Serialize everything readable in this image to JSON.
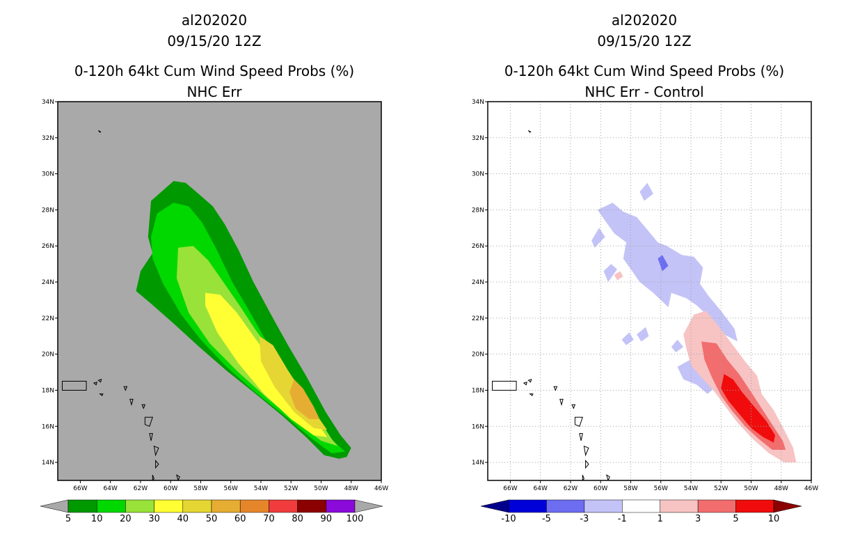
{
  "chart_data": [
    {
      "type": "filled-contour-map",
      "title_lines": [
        "al202020",
        "09/15/20 12Z",
        "0-120h 64kt Cum Wind Speed Probs (%)",
        "NHC Err"
      ],
      "lon_ticks": [
        "66W",
        "64W",
        "62W",
        "60W",
        "58W",
        "56W",
        "54W",
        "52W",
        "50W",
        "48W",
        "46W"
      ],
      "lat_ticks": [
        "14N",
        "16N",
        "18N",
        "20N",
        "22N",
        "24N",
        "26N",
        "28N",
        "30N",
        "32N",
        "34N"
      ],
      "lon_range": [
        -67.5,
        -46
      ],
      "lat_range": [
        13,
        34
      ],
      "grid": false,
      "background_color": "#a9a9a9",
      "colorbar": {
        "labels": [
          "5",
          "10",
          "20",
          "30",
          "40",
          "50",
          "60",
          "70",
          "80",
          "90",
          "100"
        ],
        "colors": [
          "#009900",
          "#00d800",
          "#99e23a",
          "#ffff33",
          "#e6d633",
          "#e6ad33",
          "#e6862a",
          "#f03c3c",
          "#8b0000",
          "#8a0bd9"
        ],
        "end_color": "#a9a9a9"
      },
      "contours": [
        {
          "level": 5,
          "color": "#009900",
          "polygon": [
            [
              -61.3,
              28.5
            ],
            [
              -59.8,
              29.6
            ],
            [
              -59.0,
              29.5
            ],
            [
              -58.3,
              29.0
            ],
            [
              -57.2,
              28.2
            ],
            [
              -56.4,
              27.2
            ],
            [
              -55.5,
              25.8
            ],
            [
              -54.5,
              24.0
            ],
            [
              -53.2,
              22.0
            ],
            [
              -52.2,
              20.5
            ],
            [
              -51.0,
              18.8
            ],
            [
              -49.7,
              16.8
            ],
            [
              -48.7,
              15.5
            ],
            [
              -48.0,
              14.8
            ],
            [
              -48.3,
              14.3
            ],
            [
              -48.8,
              14.2
            ],
            [
              -49.8,
              14.4
            ],
            [
              -51.0,
              15.4
            ],
            [
              -52.6,
              16.6
            ],
            [
              -54.5,
              17.9
            ],
            [
              -56.3,
              19.1
            ],
            [
              -58.1,
              20.4
            ],
            [
              -59.8,
              21.7
            ],
            [
              -61.3,
              22.8
            ],
            [
              -62.3,
              23.5
            ],
            [
              -62.0,
              24.6
            ],
            [
              -61.2,
              25.6
            ],
            [
              -61.5,
              26.5
            ]
          ]
        },
        {
          "level": 10,
          "color": "#00d800",
          "polygon": [
            [
              -60.9,
              27.8
            ],
            [
              -59.8,
              28.4
            ],
            [
              -58.8,
              28.2
            ],
            [
              -57.9,
              27.3
            ],
            [
              -57.0,
              25.9
            ],
            [
              -55.9,
              24.0
            ],
            [
              -54.5,
              22.0
            ],
            [
              -53.3,
              20.2
            ],
            [
              -51.9,
              18.3
            ],
            [
              -50.5,
              16.5
            ],
            [
              -49.2,
              15.2
            ],
            [
              -48.4,
              14.6
            ],
            [
              -49.3,
              14.5
            ],
            [
              -50.6,
              15.3
            ],
            [
              -52.3,
              16.5
            ],
            [
              -54.4,
              17.9
            ],
            [
              -56.3,
              19.3
            ],
            [
              -58.0,
              20.8
            ],
            [
              -59.3,
              22.2
            ],
            [
              -60.5,
              23.9
            ],
            [
              -61.2,
              25.3
            ],
            [
              -61.3,
              26.5
            ]
          ]
        },
        {
          "level": 20,
          "color": "#99e23a",
          "polygon": [
            [
              -59.5,
              25.9
            ],
            [
              -58.5,
              26.0
            ],
            [
              -57.5,
              25.2
            ],
            [
              -56.5,
              24.0
            ],
            [
              -55.5,
              22.8
            ],
            [
              -54.4,
              21.4
            ],
            [
              -53.0,
              19.8
            ],
            [
              -51.6,
              18.1
            ],
            [
              -50.3,
              16.6
            ],
            [
              -49.3,
              15.3
            ],
            [
              -48.9,
              14.9
            ],
            [
              -50.0,
              15.2
            ],
            [
              -51.6,
              16.2
            ],
            [
              -53.5,
              17.5
            ],
            [
              -55.5,
              19.0
            ],
            [
              -57.4,
              20.6
            ],
            [
              -58.8,
              22.3
            ],
            [
              -59.6,
              24.2
            ]
          ]
        },
        {
          "level": 30,
          "color": "#ffff33",
          "polygon": [
            [
              -57.7,
              23.4
            ],
            [
              -56.7,
              23.3
            ],
            [
              -55.6,
              22.3
            ],
            [
              -54.4,
              20.9
            ],
            [
              -53.1,
              19.4
            ],
            [
              -51.8,
              17.9
            ],
            [
              -50.5,
              16.5
            ],
            [
              -49.6,
              15.4
            ],
            [
              -50.5,
              15.5
            ],
            [
              -52.0,
              16.4
            ],
            [
              -53.8,
              17.8
            ],
            [
              -55.5,
              19.5
            ],
            [
              -56.9,
              21.2
            ],
            [
              -57.7,
              22.7
            ]
          ]
        },
        {
          "level": 40,
          "color": "#e6d633",
          "polygon": [
            [
              -54.1,
              21.0
            ],
            [
              -53.2,
              20.5
            ],
            [
              -52.2,
              19.1
            ],
            [
              -51.1,
              17.7
            ],
            [
              -50.1,
              16.4
            ],
            [
              -49.6,
              15.8
            ],
            [
              -50.5,
              15.9
            ],
            [
              -51.8,
              16.8
            ],
            [
              -53.1,
              18.2
            ],
            [
              -54.0,
              19.6
            ]
          ]
        },
        {
          "level": 50,
          "color": "#e6ad33",
          "polygon": [
            [
              -51.8,
              18.6
            ],
            [
              -51.2,
              18.1
            ],
            [
              -50.5,
              17.1
            ],
            [
              -50.1,
              16.4
            ],
            [
              -50.8,
              16.4
            ],
            [
              -51.7,
              17.0
            ],
            [
              -52.1,
              17.9
            ]
          ]
        }
      ]
    },
    {
      "type": "filled-contour-map",
      "title_lines": [
        "al202020",
        "09/15/20 12Z",
        "0-120h 64kt Cum Wind Speed Probs (%)",
        "NHC Err - Control"
      ],
      "lon_ticks": [
        "66W",
        "64W",
        "62W",
        "60W",
        "58W",
        "56W",
        "54W",
        "52W",
        "50W",
        "48W",
        "46W"
      ],
      "lat_ticks": [
        "14N",
        "16N",
        "18N",
        "20N",
        "22N",
        "24N",
        "26N",
        "28N",
        "30N",
        "32N",
        "34N"
      ],
      "lon_range": [
        -67.5,
        -46
      ],
      "lat_range": [
        13,
        34
      ],
      "grid": true,
      "background_color": "#ffffff",
      "colorbar": {
        "labels": [
          "-10",
          "-5",
          "-3",
          "-1",
          "1",
          "3",
          "5",
          "10"
        ],
        "colors": [
          "#0000d9",
          "#6d6df2",
          "#c3c3f7",
          "#ffffff",
          "#f7c3c3",
          "#f26d6d",
          "#f00c0c"
        ],
        "start_color": "#00008b",
        "end_color": "#8b0000"
      },
      "contours": [
        {
          "level": -1,
          "color": "#c3c3f7",
          "polygon": [
            [
              -60.2,
              28.0
            ],
            [
              -59.2,
              28.4
            ],
            [
              -58.5,
              27.9
            ],
            [
              -57.6,
              27.6
            ],
            [
              -56.9,
              26.9
            ],
            [
              -56.2,
              26.2
            ],
            [
              -55.6,
              26.0
            ],
            [
              -54.6,
              25.5
            ],
            [
              -53.8,
              25.4
            ],
            [
              -53.2,
              24.8
            ],
            [
              -53.4,
              23.9
            ],
            [
              -52.8,
              23.2
            ],
            [
              -52.0,
              22.4
            ],
            [
              -51.1,
              21.4
            ],
            [
              -50.9,
              20.7
            ],
            [
              -51.8,
              21.1
            ],
            [
              -52.6,
              21.9
            ],
            [
              -53.6,
              22.7
            ],
            [
              -54.3,
              23.1
            ],
            [
              -55.3,
              23.4
            ],
            [
              -55.5,
              22.6
            ],
            [
              -56.5,
              23.4
            ],
            [
              -57.4,
              24.0
            ],
            [
              -57.9,
              24.6
            ],
            [
              -58.5,
              25.3
            ],
            [
              -58.3,
              26.2
            ],
            [
              -59.1,
              26.7
            ],
            [
              -59.7,
              27.4
            ]
          ]
        },
        {
          "level": -1,
          "color": "#c3c3f7",
          "polygon": [
            [
              -53.0,
              20.1
            ],
            [
              -52.1,
              19.5
            ],
            [
              -51.9,
              18.5
            ],
            [
              -52.9,
              17.8
            ],
            [
              -53.6,
              18.3
            ],
            [
              -54.5,
              18.6
            ],
            [
              -54.9,
              19.3
            ],
            [
              -53.8,
              19.8
            ]
          ]
        },
        {
          "level": -1,
          "color": "#c3c3f7",
          "polygon": [
            [
              -59.5,
              24.0
            ],
            [
              -58.9,
              24.7
            ],
            [
              -59.3,
              25.0
            ],
            [
              -59.8,
              24.6
            ]
          ]
        },
        {
          "level": -1,
          "color": "#c3c3f7",
          "polygon": [
            [
              -60.4,
              25.9
            ],
            [
              -59.7,
              26.5
            ],
            [
              -60.1,
              27.0
            ],
            [
              -60.6,
              26.3
            ]
          ]
        },
        {
          "level": -1,
          "color": "#c3c3f7",
          "polygon": [
            [
              -57.1,
              28.5
            ],
            [
              -56.5,
              28.9
            ],
            [
              -56.9,
              29.5
            ],
            [
              -57.4,
              29.0
            ]
          ]
        },
        {
          "level": -1,
          "color": "#c3c3f7",
          "polygon": [
            [
              -57.6,
              21.1
            ],
            [
              -57.0,
              21.5
            ],
            [
              -56.8,
              21.0
            ],
            [
              -57.3,
              20.7
            ]
          ]
        },
        {
          "level": -1,
          "color": "#c3c3f7",
          "polygon": [
            [
              -55.3,
              20.4
            ],
            [
              -54.9,
              20.8
            ],
            [
              -54.5,
              20.4
            ],
            [
              -55.0,
              20.1
            ]
          ]
        },
        {
          "level": -1,
          "color": "#c3c3f7",
          "polygon": [
            [
              -58.6,
              20.8
            ],
            [
              -58.1,
              21.2
            ],
            [
              -57.8,
              20.8
            ],
            [
              -58.3,
              20.5
            ]
          ]
        },
        {
          "level": -3,
          "color": "#6d6df2",
          "polygon": [
            [
              -56.2,
              25.3
            ],
            [
              -55.9,
              25.5
            ],
            [
              -55.5,
              24.9
            ],
            [
              -55.9,
              24.6
            ]
          ]
        },
        {
          "level": 1,
          "color": "#f7c3c3",
          "polygon": [
            [
              -53.8,
              22.2
            ],
            [
              -53.0,
              22.4
            ],
            [
              -52.2,
              21.6
            ],
            [
              -51.3,
              20.6
            ],
            [
              -50.4,
              19.6
            ],
            [
              -49.6,
              18.8
            ],
            [
              -49.3,
              17.8
            ],
            [
              -48.5,
              16.9
            ],
            [
              -47.8,
              15.8
            ],
            [
              -47.2,
              14.8
            ],
            [
              -47.0,
              14.0
            ],
            [
              -47.8,
              14.0
            ],
            [
              -48.8,
              14.5
            ],
            [
              -49.9,
              15.3
            ],
            [
              -50.9,
              16.2
            ],
            [
              -51.8,
              17.2
            ],
            [
              -52.5,
              18.0
            ],
            [
              -53.3,
              18.7
            ],
            [
              -54.0,
              19.4
            ],
            [
              -54.3,
              20.3
            ],
            [
              -54.5,
              21.1
            ]
          ]
        },
        {
          "level": 3,
          "color": "#f26d6d",
          "polygon": [
            [
              -53.3,
              20.7
            ],
            [
              -52.3,
              20.6
            ],
            [
              -51.6,
              19.7
            ],
            [
              -50.8,
              18.9
            ],
            [
              -50.0,
              17.9
            ],
            [
              -49.3,
              17.0
            ],
            [
              -48.6,
              16.1
            ],
            [
              -47.9,
              15.2
            ],
            [
              -47.7,
              14.7
            ],
            [
              -48.6,
              14.7
            ],
            [
              -49.5,
              15.3
            ],
            [
              -50.4,
              16.0
            ],
            [
              -51.3,
              16.9
            ],
            [
              -52.0,
              17.7
            ],
            [
              -52.6,
              18.7
            ],
            [
              -53.1,
              19.7
            ]
          ]
        },
        {
          "level": 5,
          "color": "#f00c0c",
          "polygon": [
            [
              -51.8,
              18.9
            ],
            [
              -51.2,
              18.6
            ],
            [
              -50.6,
              17.9
            ],
            [
              -49.8,
              17.1
            ],
            [
              -49.0,
              16.3
            ],
            [
              -48.4,
              15.5
            ],
            [
              -48.5,
              15.1
            ],
            [
              -49.2,
              15.4
            ],
            [
              -50.0,
              15.9
            ],
            [
              -50.8,
              16.7
            ],
            [
              -51.5,
              17.4
            ],
            [
              -52.0,
              18.1
            ]
          ]
        },
        {
          "level": 1,
          "color": "#f7c3c3",
          "polygon": [
            [
              -59.1,
              24.4
            ],
            [
              -58.7,
              24.6
            ],
            [
              -58.5,
              24.3
            ],
            [
              -58.9,
              24.1
            ]
          ]
        }
      ]
    }
  ]
}
